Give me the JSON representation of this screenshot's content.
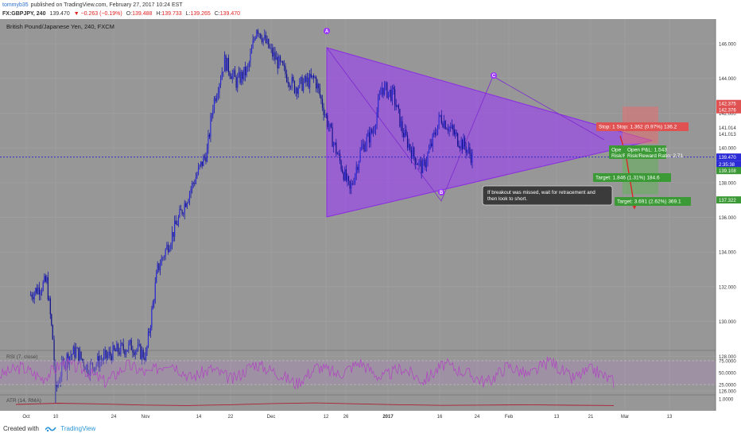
{
  "header": {
    "user": "tommyb35",
    "published_text": "published on TradingView.com, February 27, 2017 10:24 EST",
    "symbol": "FX:GBPJPY, 240",
    "last": "139.470",
    "change": "−0.263 (−0.19%)",
    "open_label": "O:",
    "open": "139.488",
    "high_label": "H:",
    "high": "139.733",
    "low_label": "L:",
    "low": "139.265",
    "close_label": "C:",
    "close": "139.470"
  },
  "footer": {
    "created_with": "Created with",
    "brand": "TradingView"
  },
  "colors": {
    "background": "#979797",
    "price_line": "#2222cc",
    "triangle": "#9b33ff",
    "rsi": "#b04ac0",
    "atr": "#aa2233",
    "stop": "#e05252",
    "target": "#3c9a36",
    "arrow": "#e02020"
  },
  "chart_data": [
    {
      "type": "candlestick",
      "title": "British Pound/Japanese Yen, 240, FXCM",
      "x_ticks": [
        "Oct",
        "10",
        "24",
        "Nov",
        "14",
        "22",
        "Dec",
        "12",
        "26",
        "2017",
        "16",
        "24",
        "Feb",
        "13",
        "21",
        "Mar",
        "13"
      ],
      "y_ticks": [
        "146.000",
        "144.000",
        "142.000",
        "140.000",
        "138.000",
        "136.000",
        "134.000",
        "132.000",
        "130.000",
        "128.000",
        "126.000"
      ],
      "ylim": [
        125.0,
        147.0
      ],
      "price_path": [
        {
          "x": "Sep 28",
          "y": 131.5
        },
        {
          "x": "Oct 4",
          "y": 132.3
        },
        {
          "x": "Oct 6",
          "y": 129.0
        },
        {
          "x": "Oct 7",
          "y": 126.0
        },
        {
          "x": "Oct 10",
          "y": 127.8
        },
        {
          "x": "Oct 14",
          "y": 128.3
        },
        {
          "x": "Oct 18",
          "y": 127.3
        },
        {
          "x": "Oct 24",
          "y": 127.9
        },
        {
          "x": "Oct 28",
          "y": 128.3
        },
        {
          "x": "Nov 2",
          "y": 128.6
        },
        {
          "x": "Nov 7",
          "y": 128.0
        },
        {
          "x": "Nov 9",
          "y": 130.5
        },
        {
          "x": "Nov 11",
          "y": 133.0
        },
        {
          "x": "Nov 16",
          "y": 135.0
        },
        {
          "x": "Nov 22",
          "y": 137.5
        },
        {
          "x": "Nov 28",
          "y": 139.8
        },
        {
          "x": "Nov 30",
          "y": 142.5
        },
        {
          "x": "Dec 4",
          "y": 145.0
        },
        {
          "x": "Dec 8",
          "y": 143.8
        },
        {
          "x": "Dec 12",
          "y": 144.5
        },
        {
          "x": "Dec 15",
          "y": 147.0
        },
        {
          "x": "Dec 20",
          "y": 145.5
        },
        {
          "x": "Dec 28",
          "y": 143.5
        },
        {
          "x": "Jan 4",
          "y": 144.0
        },
        {
          "x": "Jan 10",
          "y": 140.5
        },
        {
          "x": "Jan 16",
          "y": 137.5
        },
        {
          "x": "Jan 20",
          "y": 140.0
        },
        {
          "x": "Jan 24",
          "y": 141.0
        },
        {
          "x": "Jan 27",
          "y": 143.5
        },
        {
          "x": "Jan 31",
          "y": 143.0
        },
        {
          "x": "Feb 3",
          "y": 141.0
        },
        {
          "x": "Feb 7",
          "y": 139.5
        },
        {
          "x": "Feb 10",
          "y": 138.8
        },
        {
          "x": "Feb 13",
          "y": 140.2
        },
        {
          "x": "Feb 16",
          "y": 141.8
        },
        {
          "x": "Feb 20",
          "y": 141.0
        },
        {
          "x": "Feb 22",
          "y": 140.5
        },
        {
          "x": "Feb 24",
          "y": 140.2
        },
        {
          "x": "Feb 27",
          "y": 139.47
        }
      ],
      "price_axis_labels": [
        {
          "text": "142.375",
          "kind": "stop"
        },
        {
          "text": "142.376",
          "kind": "stop"
        },
        {
          "text": "141.014",
          "kind": "neutral"
        },
        {
          "text": "141.013",
          "kind": "neutral"
        },
        {
          "text": "139.470",
          "kind": "last"
        },
        {
          "text": "2:35:38",
          "kind": "last"
        },
        {
          "text": "139.108",
          "kind": "target"
        },
        {
          "text": "137.322",
          "kind": "target"
        }
      ],
      "pattern_points": [
        "A",
        "B",
        "C"
      ],
      "stop_labels": [
        "Stop: 1",
        "Stop: 1.362 (0.97%) 136.2"
      ],
      "pnl_labels": [
        "Ope",
        "Risk/Re",
        "Open P&L: 1.543",
        "Risk/Reward Ratio: 2.71"
      ],
      "target_labels": [
        "Target: 1.846 (1.31%) 184.6",
        "Target: 3.691 (2.62%) 369.1"
      ],
      "annotation": [
        "If breakout was missed, wait for retracement and",
        "then look to short."
      ]
    },
    {
      "type": "line",
      "title": "RSI (7, close)",
      "y_ticks": [
        "75.0000",
        "50.0000",
        "25.0000"
      ],
      "ylim": [
        5,
        95
      ],
      "series": [
        {
          "name": "RSI (7, close)",
          "values": [
            45,
            62,
            38,
            71,
            55,
            30,
            66,
            48,
            74,
            40,
            58,
            35,
            69,
            52,
            27,
            63,
            46,
            72,
            39,
            60,
            33,
            68,
            50,
            29,
            65,
            44,
            76,
            37,
            57,
            31
          ]
        }
      ]
    },
    {
      "type": "line",
      "title": "ATR (14, RMA)",
      "y_ticks": [
        "1.0000"
      ],
      "ylim": [
        0.2,
        1.2
      ],
      "series": [
        {
          "name": "ATR (14, RMA)",
          "values": [
            0.62,
            0.7,
            0.65,
            0.58,
            0.55,
            0.6,
            0.68,
            0.72,
            0.66,
            0.6,
            0.56,
            0.58,
            0.6,
            0.57,
            0.55
          ]
        }
      ]
    }
  ]
}
